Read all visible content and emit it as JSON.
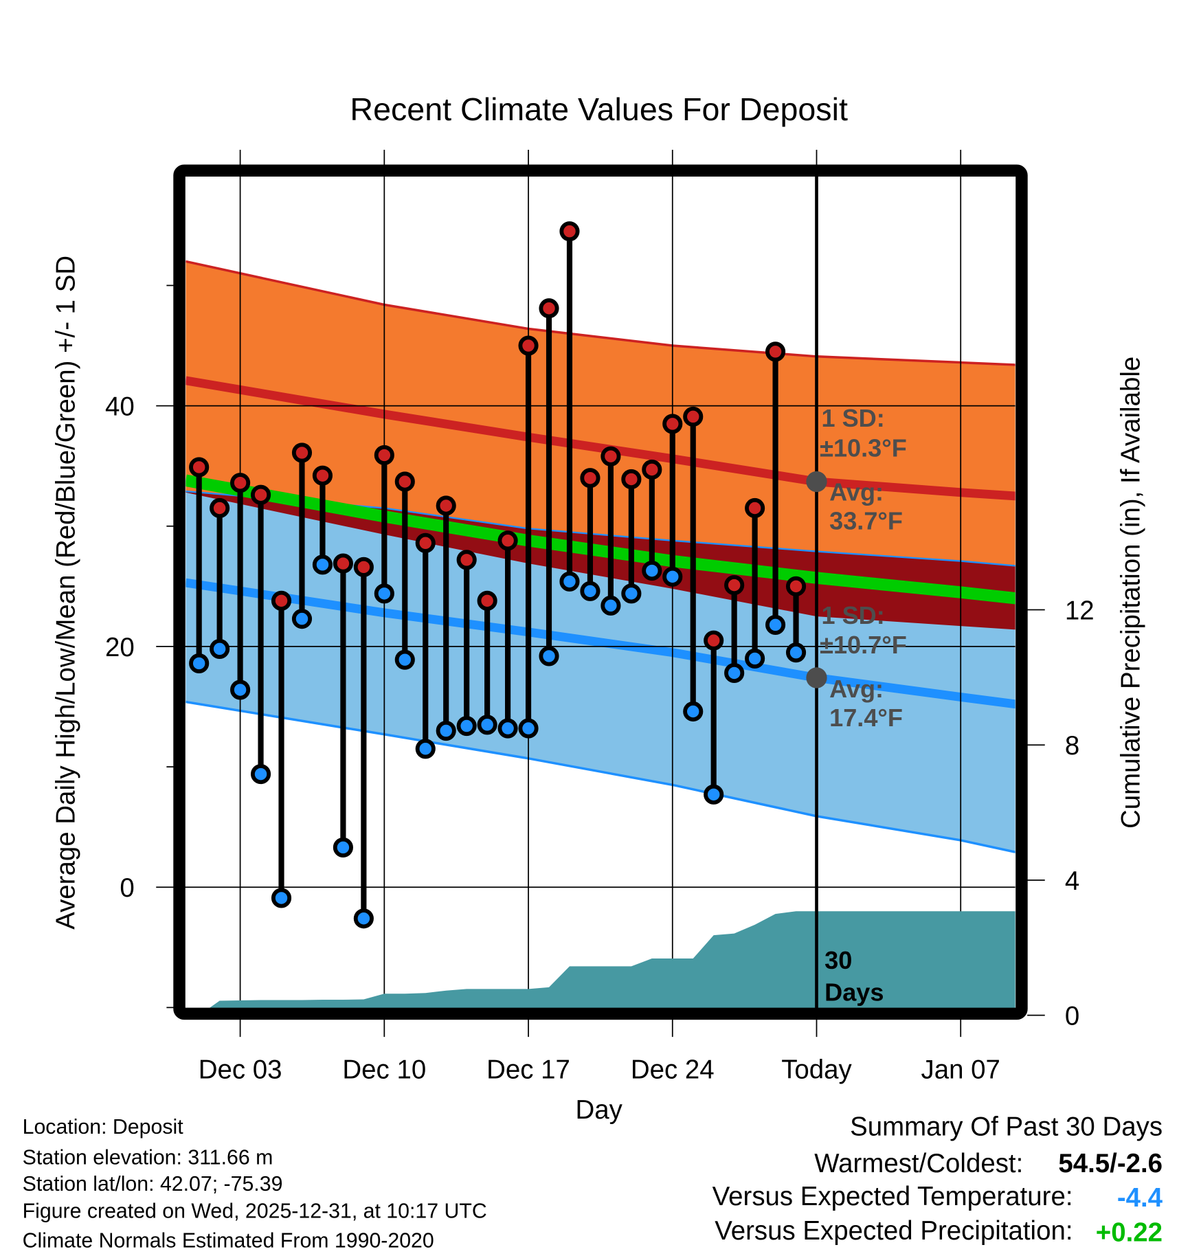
{
  "chart_data": {
    "type": "line",
    "title": "Recent Climate Values For Deposit",
    "xlabel": "Day",
    "ylabel": "Average Daily High/Low/Mean (Red/Blue/Green) +/- 1 SD",
    "ylabel_right": "Cumulative Precipitation (in), If Available",
    "ylim": [
      -10.1,
      59.1
    ],
    "ylim_right": [
      0,
      24.6
    ],
    "xlim_days": [
      0.35,
      40.7
    ],
    "x_ticks": [
      {
        "day": 3,
        "label": "Dec 03"
      },
      {
        "day": 10,
        "label": "Dec 10"
      },
      {
        "day": 17,
        "label": "Dec 17"
      },
      {
        "day": 24,
        "label": "Dec 24"
      },
      {
        "day": 31,
        "label": "Today"
      },
      {
        "day": 38,
        "label": "Jan 07"
      }
    ],
    "y_ticks": [
      0,
      20,
      40
    ],
    "y_minor_ticks": [
      -10,
      10,
      30,
      50
    ],
    "y_ticks_right": [
      0,
      4,
      8,
      12
    ],
    "today_day": 31,
    "grid": true,
    "observed": {
      "days": [
        1,
        2,
        3,
        4,
        5,
        6,
        7,
        8,
        9,
        10,
        11,
        12,
        13,
        14,
        15,
        16,
        17,
        18,
        19,
        20,
        21,
        22,
        23,
        24,
        25,
        26,
        27,
        28,
        29,
        30
      ],
      "high": [
        34.9,
        31.5,
        33.6,
        32.6,
        23.8,
        36.1,
        34.2,
        26.9,
        26.6,
        35.9,
        33.7,
        28.6,
        31.7,
        27.2,
        23.8,
        28.8,
        45.0,
        48.1,
        54.5,
        34.0,
        35.8,
        33.9,
        34.7,
        38.5,
        39.1,
        20.5,
        25.1,
        31.5,
        44.5,
        25.0
      ],
      "low": [
        18.6,
        19.8,
        16.4,
        9.4,
        -0.9,
        22.3,
        26.8,
        3.3,
        -2.6,
        24.4,
        18.9,
        11.5,
        13.0,
        13.4,
        13.5,
        13.2,
        13.2,
        19.2,
        25.4,
        24.6,
        23.4,
        24.4,
        26.3,
        25.8,
        14.6,
        7.7,
        17.8,
        19.0,
        21.8,
        19.5
      ]
    },
    "normals": {
      "days": [
        0.35,
        10,
        17,
        24,
        31,
        38,
        40.7
      ],
      "high_plus_sd": [
        52.0,
        48.4,
        46.4,
        45.0,
        44.1,
        43.6,
        43.4
      ],
      "high_mean": [
        42.1,
        39.3,
        37.4,
        35.6,
        33.7,
        32.8,
        32.5
      ],
      "high_minus_sd": [
        32.8,
        29.3,
        26.9,
        24.8,
        22.5,
        21.7,
        21.4
      ],
      "mean": [
        33.8,
        30.8,
        28.8,
        27.1,
        25.7,
        24.5,
        24.0
      ],
      "low_plus_sd": [
        32.9,
        31.5,
        29.8,
        28.8,
        27.9,
        27.1,
        26.7
      ],
      "low_mean": [
        25.3,
        22.8,
        21.2,
        19.5,
        17.4,
        15.8,
        15.2
      ],
      "low_minus_sd": [
        15.4,
        12.7,
        10.7,
        8.5,
        5.9,
        3.9,
        2.9
      ]
    },
    "precip": {
      "days": [
        1,
        2,
        3,
        4,
        5,
        6,
        7,
        8,
        9,
        10,
        11,
        12,
        13,
        14,
        15,
        16,
        17,
        18,
        19,
        20,
        21,
        22,
        23,
        24,
        25,
        26,
        27,
        28,
        29,
        30,
        40.7
      ],
      "cumulative_in": [
        0.0,
        0.43,
        0.44,
        0.45,
        0.45,
        0.45,
        0.46,
        0.46,
        0.47,
        0.64,
        0.64,
        0.66,
        0.73,
        0.78,
        0.78,
        0.78,
        0.78,
        0.83,
        1.45,
        1.45,
        1.45,
        1.45,
        1.68,
        1.68,
        1.68,
        2.37,
        2.42,
        2.68,
        3.0,
        3.08,
        3.08
      ]
    },
    "annotations": {
      "high_sd_label": "1 SD:",
      "high_sd_value": "±10.3°F",
      "high_avg_label": "Avg:",
      "high_avg_value": "33.7°F",
      "low_sd_label": "1 SD:",
      "low_sd_value": "±10.7°F",
      "low_avg_label": "Avg:",
      "low_avg_value": "17.4°F",
      "days_label_1": "30",
      "days_label_2": "Days"
    },
    "colors": {
      "high_band": "#F47A2E",
      "overlap_band": "#930D14",
      "mean": "#00CC00",
      "low_band": "#82C1E8",
      "low_line": "#1E90FF",
      "high_line": "#CC2222",
      "precip": "#4799A2",
      "annotation": "#4D4D4D"
    }
  },
  "footer": {
    "location": "Location: Deposit",
    "elevation": "Station elevation: 311.66 m",
    "latlon": "Station lat/lon: 42.07; -75.39",
    "created": "Figure created on Wed, 2025-12-31, at 10:17 UTC",
    "normals": "Climate Normals Estimated From 1990-2020"
  },
  "summary": {
    "title": "Summary Of Past 30 Days",
    "warmest_label": "Warmest/Coldest:",
    "warmest_value": "54.5/-2.6",
    "temp_label": "Versus Expected Temperature:",
    "temp_value": "-4.4",
    "precip_label": "Versus Expected Precipitation:",
    "precip_value": "+0.22",
    "temp_color": "#1E90FF",
    "precip_color": "#00BB00"
  }
}
